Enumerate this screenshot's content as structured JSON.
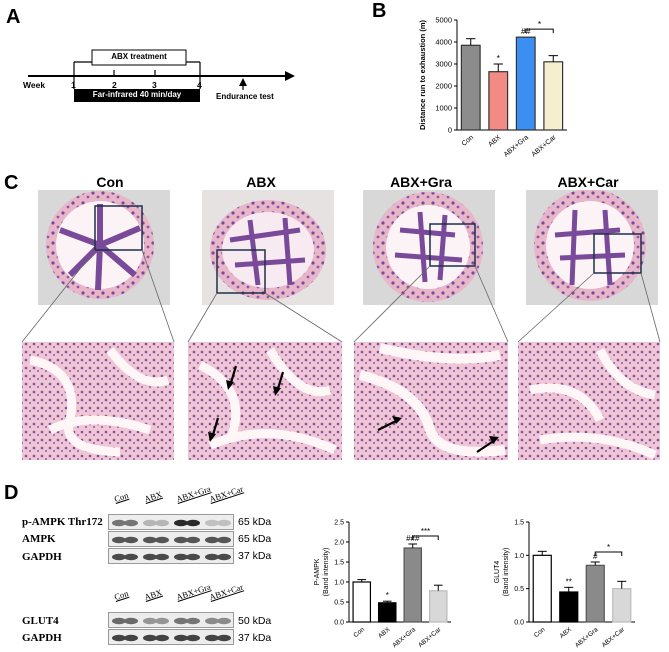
{
  "panels": {
    "a": "A",
    "b": "B",
    "c": "C",
    "d": "D"
  },
  "timeline": {
    "week_label": "Week",
    "weeks": [
      "1",
      "2",
      "3",
      "4"
    ],
    "abx_label": "ABX treatment",
    "far_label": "Far-infrared 40 min/day",
    "endurance_label": "Endurance test"
  },
  "colors": {
    "con": "#8c8c8c",
    "abx": "#f28b84",
    "gra": "#3b8ff2",
    "car": "#f5efcf",
    "he_pink": "#e7b3c6",
    "he_purple": "#6b3f8c"
  },
  "chart_data": [
    {
      "id": "distance",
      "type": "bar",
      "ylabel": "Distance run to exhaustion (m)",
      "ylim": [
        0,
        5000
      ],
      "yticks": [
        "0",
        "1000",
        "2000",
        "3000",
        "4000",
        "5000"
      ],
      "categories": [
        "Con",
        "ABX",
        "ABX+Gra",
        "ABX+Car"
      ],
      "values": [
        3850,
        2650,
        4220,
        3100
      ],
      "errors": [
        300,
        350,
        0,
        280
      ],
      "annotations": [
        "",
        "*",
        "##",
        ""
      ],
      "bracket": {
        "from": "ABX+Gra",
        "to": "ABX+Car",
        "label": "*"
      }
    },
    {
      "id": "pampk",
      "type": "bar",
      "ylabel": "P-AMPK",
      "ylabel2": "(Band intensity)",
      "ylim": [
        0,
        2.5
      ],
      "yticks": [
        "0.0",
        "0.5",
        "1.0",
        "1.5",
        "2.0",
        "2.5"
      ],
      "categories": [
        "Con",
        "ABX",
        "ABX+Gra",
        "ABX+Car"
      ],
      "values": [
        1.0,
        0.48,
        1.85,
        0.78
      ],
      "errors": [
        0.06,
        0.04,
        0.1,
        0.14
      ],
      "annotations": [
        "",
        "*",
        "###",
        ""
      ],
      "bracket": {
        "from": "ABX+Gra",
        "to": "ABX+Car",
        "label": "***"
      }
    },
    {
      "id": "glut4",
      "type": "bar",
      "ylabel": "GLUT4",
      "ylabel2": "(Band intensity)",
      "ylim": [
        0,
        1.5
      ],
      "yticks": [
        "0.0",
        "0.5",
        "1.0",
        "1.5"
      ],
      "categories": [
        "Con",
        "ABX",
        "ABX+Gra",
        "ABX+Car"
      ],
      "values": [
        1.0,
        0.45,
        0.85,
        0.5
      ],
      "errors": [
        0.06,
        0.07,
        0.05,
        0.11
      ],
      "annotations": [
        "",
        "**",
        "#",
        ""
      ],
      "bracket": {
        "from": "ABX+Gra",
        "to": "ABX+Car",
        "label": "*"
      }
    }
  ],
  "histology": {
    "groups": [
      "Con",
      "ABX",
      "ABX+Gra",
      "ABX+Car"
    ]
  },
  "blots": {
    "lanes": [
      "Con",
      "ABX",
      "ABX+Gra",
      "ABX+Car"
    ],
    "rows_top": [
      {
        "label": "p-AMPK Thr172",
        "kda": "65 kDa",
        "bands": [
          0.55,
          0.25,
          0.9,
          0.2
        ]
      },
      {
        "label": "AMPK",
        "kda": "65 kDa",
        "bands": [
          0.7,
          0.7,
          0.7,
          0.7
        ]
      },
      {
        "label": "GAPDH",
        "kda": "37 kDa",
        "bands": [
          0.75,
          0.75,
          0.75,
          0.75
        ]
      }
    ],
    "rows_bottom": [
      {
        "label": "GLUT4",
        "kda": "50 kDa",
        "bands": [
          0.6,
          0.4,
          0.55,
          0.45
        ]
      },
      {
        "label": "GAPDH",
        "kda": "37 kDa",
        "bands": [
          0.78,
          0.78,
          0.78,
          0.78
        ]
      }
    ]
  }
}
